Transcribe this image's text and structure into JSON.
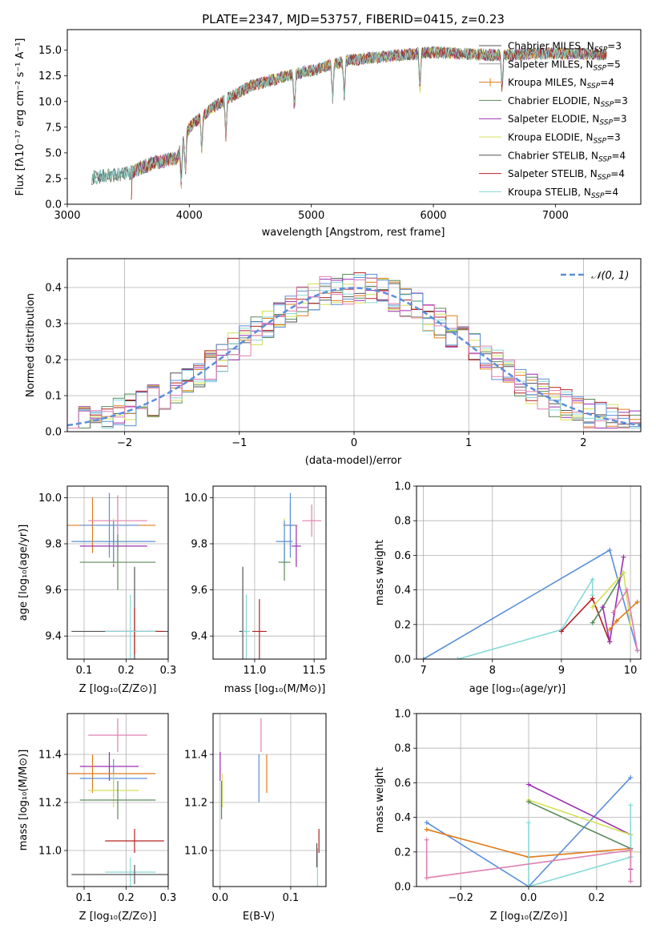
{
  "colors": {
    "chabrier_miles": "#4d4d4d",
    "salpeter_miles": "#999999",
    "kroupa_miles": "#e07b1a",
    "chabrier_elodie": "#5a8a5a",
    "salpeter_elodie": "#9a2fb0",
    "kroupa_elodie": "#d4e157",
    "chabrier_stelib": "#555555",
    "salpeter_stelib": "#b22222",
    "kroupa_stelib": "#88d8d8",
    "pink": "#e07fb0",
    "blue": "#5b8fd9",
    "gauss": "#5b8fd9",
    "grid": "#b0b0b0"
  },
  "chart_data": [
    {
      "id": "spectrum",
      "type": "line",
      "title": "PLATE=2347, MJD=53757, FIBERID=0415, z=0.23",
      "xlabel": "wavelength [Angstrom, rest frame]",
      "ylabel": "Flux [fλ10⁻¹⁷ erg cm⁻² s⁻¹ A⁻¹]",
      "xlim": [
        3000,
        7700
      ],
      "ylim": [
        0,
        17
      ],
      "xticks": [
        "3000",
        "4000",
        "5000",
        "6000",
        "7000"
      ],
      "yticks": [
        "0.0",
        "2.5",
        "5.0",
        "7.5",
        "10.0",
        "12.5",
        "15.0"
      ],
      "legend": "top-right",
      "series": [
        {
          "name": "Chabrier MILES, N_SSP=3",
          "label": "Chabrier MILES, N",
          "sub": "SSP",
          "n": "=3",
          "color": "#555555"
        },
        {
          "name": "Salpeter MILES, N_SSP=5",
          "label": "Salpeter MILES, N",
          "sub": "SSP",
          "n": "=5",
          "color": "#999999"
        },
        {
          "name": "Kroupa MILES, N_SSP=4",
          "label": "Kroupa MILES, N",
          "sub": "SSP",
          "n": "=4",
          "color": "#e07b1a"
        },
        {
          "name": "Chabrier ELODIE, N_SSP=3",
          "label": "Chabrier ELODIE, N",
          "sub": "SSP",
          "n": "=3",
          "color": "#5a8a5a"
        },
        {
          "name": "Salpeter ELODIE, N_SSP=3",
          "label": "Salpeter ELODIE, N",
          "sub": "SSP",
          "n": "=3",
          "color": "#9a2fb0"
        },
        {
          "name": "Kroupa ELODIE, N_SSP=3",
          "label": "Kroupa ELODIE, N",
          "sub": "SSP",
          "n": "=3",
          "color": "#d4e157"
        },
        {
          "name": "Chabrier STELIB, N_SSP=4",
          "label": "Chabrier STELIB, N",
          "sub": "SSP",
          "n": "=4",
          "color": "#555555"
        },
        {
          "name": "Salpeter STELIB, N_SSP=4",
          "label": "Salpeter STELIB, N",
          "sub": "SSP",
          "n": "=4",
          "color": "#b22222"
        },
        {
          "name": "Kroupa STELIB, N_SSP=4",
          "label": "Kroupa STELIB, N",
          "sub": "SSP",
          "n": "=4",
          "color": "#88d8d8"
        }
      ],
      "continuum": [
        {
          "x": 3200,
          "y": 2.6
        },
        {
          "x": 3500,
          "y": 3.0
        },
        {
          "x": 3700,
          "y": 4.0
        },
        {
          "x": 3900,
          "y": 4.5
        },
        {
          "x": 4000,
          "y": 7.5
        },
        {
          "x": 4200,
          "y": 9.5
        },
        {
          "x": 4500,
          "y": 11.5
        },
        {
          "x": 4800,
          "y": 12.5
        },
        {
          "x": 5000,
          "y": 13.0
        },
        {
          "x": 5300,
          "y": 14.0
        },
        {
          "x": 5700,
          "y": 14.5
        },
        {
          "x": 6000,
          "y": 14.8
        },
        {
          "x": 6500,
          "y": 14.5
        },
        {
          "x": 7000,
          "y": 14.7
        },
        {
          "x": 7400,
          "y": 14.6
        }
      ]
    },
    {
      "id": "residuals",
      "type": "histogram",
      "xlabel": "(data-model)/error",
      "ylabel": "Normed distribution",
      "xlim": [
        -2.5,
        2.5
      ],
      "ylim": [
        0,
        0.48
      ],
      "xticks": [
        "−2",
        "−1",
        "0",
        "1",
        "2"
      ],
      "yticks": [
        "0.0",
        "0.1",
        "0.2",
        "0.3",
        "0.4"
      ],
      "gauss_label": "𝒩(0, 1)",
      "legend": "top-right",
      "grid": true
    },
    {
      "id": "age_vs_Z",
      "type": "errorbar",
      "xlabel": "Z [log₁₀(Z/Z⊙)]",
      "ylabel": "age  [log₁₀(age/yr)]",
      "xlim": [
        0.06,
        0.3
      ],
      "ylim": [
        9.3,
        10.05
      ],
      "xticks": [
        "0.1",
        "0.2",
        "0.3"
      ],
      "yticks": [
        "9.4",
        "9.6",
        "9.8",
        "10.0"
      ],
      "points": [
        {
          "x": 0.12,
          "y": 9.88,
          "xerr": 0.15,
          "yerr": 0.12,
          "color": "#e07b1a"
        },
        {
          "x": 0.16,
          "y": 9.88,
          "xerr": 0.07,
          "yerr": 0.14,
          "color": "#5b8fd9"
        },
        {
          "x": 0.18,
          "y": 9.9,
          "xerr": 0.07,
          "yerr": 0.11,
          "color": "#e07fb0"
        },
        {
          "x": 0.17,
          "y": 9.79,
          "xerr": 0.08,
          "yerr": 0.09,
          "color": "#9a2fb0"
        },
        {
          "x": 0.17,
          "y": 9.81,
          "xerr": 0.08,
          "yerr": 0.1,
          "color": "#d4e157"
        },
        {
          "x": 0.17,
          "y": 9.81,
          "xerr": 0.1,
          "yerr": 0.09,
          "color": "#5b8fd9"
        },
        {
          "x": 0.18,
          "y": 9.72,
          "xerr": 0.09,
          "yerr": 0.12,
          "color": "#5a8a5a"
        },
        {
          "x": 0.22,
          "y": 9.42,
          "xerr": 0.15,
          "yerr": 0.28,
          "color": "#555555"
        },
        {
          "x": 0.22,
          "y": 9.42,
          "xerr": 0.07,
          "yerr": 0.1,
          "color": "#b22222"
        },
        {
          "x": 0.21,
          "y": 9.42,
          "xerr": 0.06,
          "yerr": 0.16,
          "color": "#88d8d8"
        }
      ]
    },
    {
      "id": "age_vs_mass",
      "type": "errorbar",
      "xlabel": "mass [log₁₀(M/M⊙)]",
      "xlim": [
        10.65,
        11.6
      ],
      "ylim": [
        9.3,
        10.05
      ],
      "xticks": [
        "11.0",
        "11.5"
      ],
      "yticks": [
        "9.4",
        "9.6",
        "9.8",
        "10.0"
      ],
      "points": [
        {
          "x": 11.3,
          "y": 9.88,
          "xerr": 0.06,
          "yerr": 0.1,
          "color": "#e07b1a"
        },
        {
          "x": 11.3,
          "y": 9.88,
          "xerr": 0.04,
          "yerr": 0.14,
          "color": "#5b8fd9"
        },
        {
          "x": 11.48,
          "y": 9.9,
          "xerr": 0.08,
          "yerr": 0.07,
          "color": "#e07fb0"
        },
        {
          "x": 11.35,
          "y": 9.79,
          "xerr": 0.04,
          "yerr": 0.09,
          "color": "#9a2fb0"
        },
        {
          "x": 11.25,
          "y": 9.81,
          "xerr": 0.05,
          "yerr": 0.1,
          "color": "#d4e157"
        },
        {
          "x": 11.25,
          "y": 9.72,
          "xerr": 0.05,
          "yerr": 0.08,
          "color": "#5a8a5a"
        },
        {
          "x": 11.25,
          "y": 9.81,
          "xerr": 0.07,
          "yerr": 0.09,
          "color": "#5b8fd9"
        },
        {
          "x": 10.9,
          "y": 9.42,
          "xerr": 0.03,
          "yerr": 0.28,
          "color": "#555555"
        },
        {
          "x": 11.04,
          "y": 9.42,
          "xerr": 0.06,
          "yerr": 0.14,
          "color": "#b22222"
        },
        {
          "x": 10.93,
          "y": 9.42,
          "xerr": 0.03,
          "yerr": 0.16,
          "color": "#88d8d8"
        }
      ]
    },
    {
      "id": "weight_vs_age",
      "type": "line",
      "xlabel": "age  [log₁₀(age/yr)]",
      "ylabel": "mass weight",
      "xlim": [
        6.9,
        10.15
      ],
      "ylim": [
        0,
        1
      ],
      "xticks": [
        "7",
        "8",
        "9",
        "10"
      ],
      "yticks": [
        "0.0",
        "0.2",
        "0.4",
        "0.6",
        "0.8",
        "1.0"
      ],
      "series": [
        {
          "color": "#5b8fd9",
          "x": [
            7.0,
            9.7,
            10.1
          ],
          "y": [
            0.0,
            0.63,
            0.05
          ]
        },
        {
          "color": "#88d8d8",
          "x": [
            7.5,
            9.0,
            9.45,
            9.45
          ],
          "y": [
            0.0,
            0.17,
            0.46,
            0.37
          ]
        },
        {
          "color": "#b22222",
          "x": [
            9.0,
            9.45,
            9.7
          ],
          "y": [
            0.16,
            0.35,
            0.1
          ]
        },
        {
          "color": "#5a8a5a",
          "x": [
            9.45,
            9.6,
            9.9
          ],
          "y": [
            0.21,
            0.3,
            0.5
          ]
        },
        {
          "color": "#9a2fb0",
          "x": [
            9.6,
            9.7,
            9.9
          ],
          "y": [
            0.3,
            0.1,
            0.59
          ]
        },
        {
          "color": "#d4e157",
          "x": [
            9.45,
            9.9,
            10.0
          ],
          "y": [
            0.3,
            0.5,
            0.2
          ]
        },
        {
          "color": "#e07b1a",
          "x": [
            9.7,
            9.8,
            10.1
          ],
          "y": [
            0.17,
            0.22,
            0.33
          ]
        },
        {
          "color": "#e07fb0",
          "x": [
            9.75,
            9.95,
            10.1
          ],
          "y": [
            0.27,
            0.4,
            0.05
          ]
        }
      ]
    },
    {
      "id": "mass_vs_Z",
      "type": "errorbar",
      "xlabel": "Z [log₁₀(Z/Z⊙)]",
      "ylabel": "mass [log₁₀(M/M⊙)]",
      "xlim": [
        0.06,
        0.3
      ],
      "ylim": [
        10.85,
        11.57
      ],
      "xticks": [
        "0.1",
        "0.2",
        "0.3"
      ],
      "yticks": [
        "11.0",
        "11.2",
        "11.4"
      ],
      "points": [
        {
          "x": 0.18,
          "y": 11.48,
          "xerr": 0.07,
          "yerr": 0.07,
          "color": "#e07fb0"
        },
        {
          "x": 0.16,
          "y": 11.35,
          "xerr": 0.07,
          "yerr": 0.06,
          "color": "#9a2fb0"
        },
        {
          "x": 0.12,
          "y": 11.32,
          "xerr": 0.15,
          "yerr": 0.08,
          "color": "#e07b1a"
        },
        {
          "x": 0.17,
          "y": 11.3,
          "xerr": 0.08,
          "yerr": 0.08,
          "color": "#5b8fd9"
        },
        {
          "x": 0.17,
          "y": 11.25,
          "xerr": 0.06,
          "yerr": 0.07,
          "color": "#d4e157"
        },
        {
          "x": 0.18,
          "y": 11.21,
          "xerr": 0.09,
          "yerr": 0.08,
          "color": "#5a8a5a"
        },
        {
          "x": 0.22,
          "y": 11.04,
          "xerr": 0.07,
          "yerr": 0.05,
          "color": "#b22222"
        },
        {
          "x": 0.21,
          "y": 10.91,
          "xerr": 0.06,
          "yerr": 0.06,
          "color": "#88d8d8"
        },
        {
          "x": 0.22,
          "y": 10.9,
          "xerr": 0.15,
          "yerr": 0.04,
          "color": "#555555"
        }
      ]
    },
    {
      "id": "mass_vs_ebv",
      "type": "errorbar",
      "xlabel": "E(B-V)",
      "xlim": [
        -0.01,
        0.15
      ],
      "ylim": [
        10.85,
        11.57
      ],
      "xticks": [
        "0.0",
        "0.1"
      ],
      "yticks": [
        "11.0",
        "11.2",
        "11.4"
      ],
      "points": [
        {
          "x": 0.058,
          "y": 11.48,
          "xerr": 0.0,
          "yerr": 0.07,
          "color": "#e07fb0"
        },
        {
          "x": 0.0,
          "y": 11.35,
          "xerr": 0.0,
          "yerr": 0.06,
          "color": "#9a2fb0"
        },
        {
          "x": 0.066,
          "y": 11.32,
          "xerr": 0.0,
          "yerr": 0.08,
          "color": "#e07b1a"
        },
        {
          "x": 0.055,
          "y": 11.3,
          "xerr": 0.0,
          "yerr": 0.1,
          "color": "#5b8fd9"
        },
        {
          "x": 0.003,
          "y": 11.25,
          "xerr": 0.0,
          "yerr": 0.07,
          "color": "#d4e157"
        },
        {
          "x": 0.002,
          "y": 11.21,
          "xerr": 0.0,
          "yerr": 0.08,
          "color": "#5a8a5a"
        },
        {
          "x": 0.14,
          "y": 11.04,
          "xerr": 0.0,
          "yerr": 0.05,
          "color": "#b22222"
        },
        {
          "x": 0.138,
          "y": 10.93,
          "xerr": 0.0,
          "yerr": 0.08,
          "color": "#88d8d8"
        },
        {
          "x": 0.137,
          "y": 10.98,
          "xerr": 0.0,
          "yerr": 0.05,
          "color": "#555555"
        }
      ]
    },
    {
      "id": "weight_vs_Z",
      "type": "line",
      "xlabel": "Z [log₁₀(Z/Z⊙)]",
      "ylabel": "mass weight",
      "xlim": [
        -0.33,
        0.33
      ],
      "ylim": [
        0,
        1
      ],
      "xticks": [
        "−0.2",
        "0.0",
        "0.2"
      ],
      "yticks": [
        "0.0",
        "0.2",
        "0.4",
        "0.6",
        "0.8",
        "1.0"
      ],
      "series": [
        {
          "color": "#5b8fd9",
          "x": [
            -0.3,
            0.0,
            0.3
          ],
          "y": [
            0.37,
            0.0,
            0.63
          ]
        },
        {
          "color": "#e07b1a",
          "x": [
            -0.3,
            0.0,
            0.3
          ],
          "y": [
            0.33,
            0.17,
            0.22
          ]
        },
        {
          "color": "#9a2fb0",
          "x": [
            0.0,
            0.3,
            0.3
          ],
          "y": [
            0.59,
            0.3,
            0.1
          ]
        },
        {
          "color": "#d4e157",
          "x": [
            0.0,
            0.3,
            0.3
          ],
          "y": [
            0.5,
            0.3,
            0.2
          ]
        },
        {
          "color": "#5a8a5a",
          "x": [
            0.0,
            0.3,
            0.3
          ],
          "y": [
            0.49,
            0.22,
            0.17
          ]
        },
        {
          "color": "#88d8d8",
          "x": [
            0.0,
            0.0,
            0.3,
            0.3
          ],
          "y": [
            0.37,
            0.0,
            0.17,
            0.47
          ]
        },
        {
          "color": "#e07fb0",
          "x": [
            -0.3,
            -0.3,
            0.3,
            0.3
          ],
          "y": [
            0.27,
            0.05,
            0.21,
            0.03
          ]
        }
      ]
    }
  ]
}
